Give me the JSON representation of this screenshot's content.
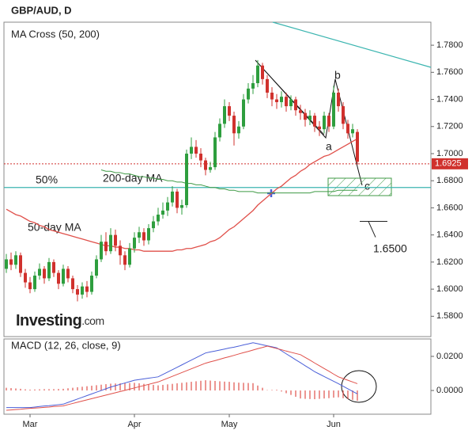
{
  "title": "GBP/AUD, D",
  "logo": {
    "main": "Investing",
    "suffix": ".com"
  },
  "chart_data": [
    {
      "type": "candlestick",
      "title": "MA Cross (50, 200)",
      "up_color": "#2e9e3e",
      "down_color": "#d0312d",
      "open": [
        1.615,
        1.622,
        1.618,
        1.625,
        1.612,
        1.605,
        1.6,
        1.61,
        1.615,
        1.608,
        1.62,
        1.612,
        1.604,
        1.615,
        1.608,
        1.6,
        1.596,
        1.602,
        1.598,
        1.61,
        1.622,
        1.635,
        1.628,
        1.64,
        1.632,
        1.625,
        1.618,
        1.63,
        1.638,
        1.642,
        1.636,
        1.645,
        1.65,
        1.655,
        1.658,
        1.664,
        1.672,
        1.66,
        1.662,
        1.7,
        1.705,
        1.7,
        1.695,
        1.688,
        1.69,
        1.712,
        1.722,
        1.735,
        1.728,
        1.715,
        1.72,
        1.74,
        1.748,
        1.752,
        1.765,
        1.755,
        1.745,
        1.74,
        1.738,
        1.742,
        1.735,
        1.74,
        1.732,
        1.73,
        1.725,
        1.728,
        1.72,
        1.718,
        1.728,
        1.72,
        1.745,
        1.735,
        1.722,
        1.715,
        1.716
      ],
      "high": [
        1.626,
        1.627,
        1.628,
        1.627,
        1.615,
        1.609,
        1.613,
        1.619,
        1.617,
        1.623,
        1.622,
        1.614,
        1.618,
        1.617,
        1.61,
        1.603,
        1.605,
        1.606,
        1.613,
        1.625,
        1.64,
        1.642,
        1.645,
        1.644,
        1.636,
        1.628,
        1.634,
        1.642,
        1.646,
        1.645,
        1.648,
        1.654,
        1.66,
        1.664,
        1.668,
        1.676,
        1.674,
        1.666,
        1.703,
        1.712,
        1.71,
        1.704,
        1.697,
        1.694,
        1.716,
        1.726,
        1.74,
        1.738,
        1.731,
        1.724,
        1.744,
        1.752,
        1.758,
        1.769,
        1.767,
        1.758,
        1.749,
        1.744,
        1.746,
        1.745,
        1.743,
        1.742,
        1.736,
        1.733,
        1.732,
        1.73,
        1.724,
        1.731,
        1.73,
        1.75,
        1.748,
        1.738,
        1.725,
        1.722,
        1.718
      ],
      "low": [
        1.612,
        1.614,
        1.615,
        1.609,
        1.601,
        1.597,
        1.598,
        1.607,
        1.604,
        1.606,
        1.609,
        1.6,
        1.602,
        1.605,
        1.597,
        1.591,
        1.593,
        1.594,
        1.596,
        1.608,
        1.62,
        1.625,
        1.626,
        1.628,
        1.618,
        1.614,
        1.616,
        1.627,
        1.634,
        1.632,
        1.633,
        1.642,
        1.647,
        1.652,
        1.654,
        1.661,
        1.656,
        1.655,
        1.66,
        1.696,
        1.697,
        1.69,
        1.684,
        1.686,
        1.688,
        1.709,
        1.719,
        1.724,
        1.706,
        1.711,
        1.718,
        1.737,
        1.744,
        1.749,
        1.751,
        1.741,
        1.735,
        1.733,
        1.734,
        1.731,
        1.732,
        1.728,
        1.725,
        1.72,
        1.721,
        1.716,
        1.713,
        1.715,
        1.716,
        1.718,
        1.731,
        1.718,
        1.711,
        1.712,
        1.692
      ],
      "close": [
        1.622,
        1.618,
        1.625,
        1.612,
        1.605,
        1.6,
        1.61,
        1.615,
        1.608,
        1.62,
        1.612,
        1.604,
        1.615,
        1.608,
        1.6,
        1.596,
        1.602,
        1.598,
        1.61,
        1.622,
        1.635,
        1.628,
        1.64,
        1.632,
        1.625,
        1.618,
        1.63,
        1.638,
        1.642,
        1.636,
        1.645,
        1.65,
        1.655,
        1.658,
        1.664,
        1.672,
        1.66,
        1.662,
        1.7,
        1.705,
        1.7,
        1.695,
        1.688,
        1.69,
        1.712,
        1.722,
        1.735,
        1.728,
        1.715,
        1.72,
        1.74,
        1.748,
        1.752,
        1.765,
        1.755,
        1.745,
        1.74,
        1.738,
        1.742,
        1.735,
        1.74,
        1.732,
        1.73,
        1.725,
        1.728,
        1.72,
        1.718,
        1.728,
        1.72,
        1.745,
        1.735,
        1.722,
        1.715,
        1.718,
        1.694
      ],
      "series": [
        {
          "name": "50-day MA",
          "color": "#e0504a",
          "values": [
            1.659,
            1.657,
            1.655,
            1.654,
            1.652,
            1.65,
            1.649,
            1.647,
            1.646,
            1.644,
            1.643,
            1.642,
            1.641,
            1.64,
            1.639,
            1.638,
            1.637,
            1.636,
            1.635,
            1.634,
            1.633,
            1.632,
            1.632,
            1.631,
            1.631,
            1.63,
            1.63,
            1.629,
            1.629,
            1.628,
            1.628,
            1.628,
            1.628,
            1.628,
            1.628,
            1.628,
            1.629,
            1.629,
            1.63,
            1.63,
            1.631,
            1.632,
            1.633,
            1.635,
            1.636,
            1.638,
            1.641,
            1.644,
            1.646,
            1.649,
            1.652,
            1.655,
            1.658,
            1.662,
            1.665,
            1.668,
            1.671,
            1.674,
            1.676,
            1.679,
            1.682,
            1.684,
            1.687,
            1.689,
            1.692,
            1.694,
            1.696,
            1.698,
            1.699,
            1.701,
            1.703,
            1.705,
            1.707,
            1.709,
            1.711
          ]
        },
        {
          "name": "200-day MA",
          "color": "#3f9a45",
          "values": [
            null,
            null,
            null,
            null,
            null,
            null,
            null,
            null,
            null,
            null,
            null,
            null,
            null,
            null,
            null,
            null,
            null,
            null,
            null,
            null,
            1.688,
            1.687,
            1.687,
            1.686,
            1.686,
            1.685,
            1.685,
            1.684,
            1.683,
            1.683,
            1.682,
            1.682,
            1.681,
            1.681,
            1.68,
            1.68,
            1.679,
            1.679,
            1.678,
            1.678,
            1.677,
            1.677,
            1.676,
            1.675,
            1.675,
            1.674,
            1.674,
            1.673,
            1.673,
            1.672,
            1.672,
            1.672,
            1.672,
            1.671,
            1.671,
            1.671,
            1.671,
            1.671,
            1.671,
            1.671,
            1.671,
            1.671,
            1.671,
            1.671,
            1.671,
            1.672,
            1.672,
            1.672,
            1.672,
            1.672,
            1.673,
            1.673,
            1.673,
            1.673,
            1.673
          ]
        }
      ],
      "levels": [
        {
          "value": 1.675,
          "label": "50%",
          "color": "#3bb5b0"
        },
        {
          "value": 1.6925,
          "label": "1.6925",
          "color": "#d0312d"
        },
        {
          "value": 1.65,
          "label": "1.6500",
          "color": "#222222"
        }
      ],
      "wave_labels": [
        "a",
        "b",
        "c"
      ],
      "ylim": [
        1.565,
        1.797
      ],
      "yticks": [
        {
          "value": 1.58,
          "label": "1.5800"
        },
        {
          "value": 1.6,
          "label": "1.6000"
        },
        {
          "value": 1.62,
          "label": "1.6200"
        },
        {
          "value": 1.64,
          "label": "1.6400"
        },
        {
          "value": 1.66,
          "label": "1.6600"
        },
        {
          "value": 1.68,
          "label": "1.6800"
        },
        {
          "value": 1.7,
          "label": "1.7000"
        },
        {
          "value": 1.72,
          "label": "1.7200"
        },
        {
          "value": 1.74,
          "label": "1.7400"
        },
        {
          "value": 1.76,
          "label": "1.7600"
        },
        {
          "value": 1.78,
          "label": "1.7800"
        }
      ]
    },
    {
      "type": "macd",
      "title": "MACD (12, 26, close, 9)",
      "categories": [
        null,
        null,
        null,
        null,
        null,
        "Mar",
        null,
        null,
        null,
        null,
        null,
        null,
        null,
        null,
        null,
        null,
        null,
        null,
        null,
        null,
        null,
        null,
        null,
        null,
        null,
        null,
        null,
        "Apr",
        null,
        null,
        null,
        null,
        null,
        null,
        null,
        null,
        null,
        null,
        null,
        null,
        null,
        null,
        null,
        null,
        null,
        null,
        null,
        "May",
        null,
        null,
        null,
        null,
        null,
        null,
        null,
        null,
        null,
        null,
        null,
        null,
        null,
        null,
        null,
        null,
        null,
        null,
        null,
        null,
        null,
        "Jun",
        null,
        null,
        null,
        null,
        null
      ],
      "series": [
        {
          "color": "#4a5fd8",
          "values": [
            -0.01,
            -0.01,
            -0.01,
            -0.01,
            -0.01,
            -0.01,
            -0.0097,
            -0.0094,
            -0.0091,
            -0.0089,
            -0.0086,
            -0.0083,
            -0.008,
            -0.007,
            -0.006,
            -0.005,
            -0.004,
            -0.003,
            -0.002,
            -0.001,
            0.0,
            0.001,
            0.002,
            0.0028,
            0.0036,
            0.0044,
            0.0052,
            0.006,
            0.0064,
            0.0068,
            0.0072,
            0.0076,
            0.008,
            0.0094,
            0.0108,
            0.0122,
            0.0136,
            0.015,
            0.0164,
            0.0178,
            0.0192,
            0.0206,
            0.022,
            0.0226,
            0.0231,
            0.0237,
            0.0243,
            0.0249,
            0.0254,
            0.026,
            0.0267,
            0.0273,
            0.028,
            0.0274,
            0.0268,
            0.0262,
            0.0256,
            0.025,
            0.0233,
            0.0215,
            0.0198,
            0.018,
            0.0163,
            0.0145,
            0.0128,
            0.011,
            0.0096,
            0.0082,
            0.0068,
            0.0054,
            0.004,
            0.0025,
            0.001,
            -0.0005,
            -0.002
          ]
        },
        {
          "color": "#e0504a",
          "values": [
            -0.0116,
            -0.0114,
            -0.0112,
            -0.011,
            -0.0107,
            -0.0105,
            -0.0103,
            -0.0101,
            -0.0099,
            -0.0097,
            -0.0094,
            -0.0092,
            -0.009,
            -0.0083,
            -0.0076,
            -0.0069,
            -0.0062,
            -0.0055,
            -0.0048,
            -0.0041,
            -0.0034,
            -0.0027,
            -0.002,
            -0.0013,
            -0.0006,
            0.0001,
            0.0008,
            0.0015,
            0.0022,
            0.0029,
            0.0036,
            0.0043,
            0.005,
            0.0061,
            0.0072,
            0.0083,
            0.0094,
            0.0105,
            0.0116,
            0.0127,
            0.0138,
            0.0149,
            0.016,
            0.0168,
            0.0175,
            0.0183,
            0.0191,
            0.0198,
            0.0206,
            0.0214,
            0.0222,
            0.0229,
            0.0237,
            0.0245,
            0.0252,
            0.026,
            0.0253,
            0.0246,
            0.0239,
            0.0231,
            0.0224,
            0.0217,
            0.021,
            0.0194,
            0.0178,
            0.0161,
            0.0145,
            0.0129,
            0.0113,
            0.0096,
            0.008,
            0.007,
            0.006,
            0.005,
            0.004
          ]
        }
      ],
      "histogram": {
        "color": "#e0504a",
        "values": [
          0.0016,
          0.0014,
          0.0012,
          0.001,
          0.0007,
          0.0005,
          0.0006,
          0.0007,
          0.0008,
          0.0008,
          0.0008,
          0.0009,
          0.001,
          0.0013,
          0.0016,
          0.0019,
          0.0022,
          0.0025,
          0.0028,
          0.0031,
          0.0034,
          0.0037,
          0.004,
          0.0041,
          0.0042,
          0.0043,
          0.0044,
          0.0045,
          0.0042,
          0.0039,
          0.0036,
          0.0033,
          0.003,
          0.0033,
          0.0036,
          0.0039,
          0.0042,
          0.0045,
          0.0048,
          0.0051,
          0.0054,
          0.0057,
          0.006,
          0.0058,
          0.0056,
          0.0054,
          0.0052,
          0.0051,
          0.0048,
          0.0046,
          0.0045,
          0.0044,
          0.0043,
          0.0029,
          0.0016,
          0.0002,
          0.0003,
          0.0004,
          -0.0006,
          -0.0016,
          -0.0026,
          -0.0037,
          -0.0047,
          -0.0049,
          -0.005,
          -0.0051,
          -0.0049,
          -0.0047,
          -0.0045,
          -0.0042,
          -0.004,
          -0.0045,
          -0.005,
          -0.0055,
          -0.006
        ]
      },
      "ylim": [
        -0.0139,
        0.0302
      ],
      "yticks": [
        {
          "value": 0,
          "label": "0.0000"
        },
        {
          "value": 0.02,
          "label": "0.0200"
        }
      ]
    }
  ]
}
